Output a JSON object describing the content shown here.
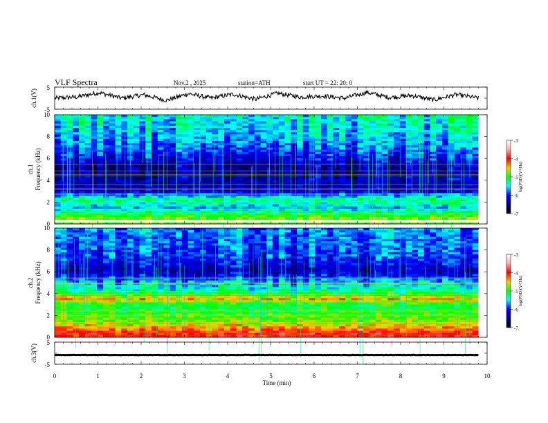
{
  "header": {
    "title": "VLF  Spectra",
    "date": "Nov.2  , 2025",
    "station": "station=ATH",
    "start": "start  UT  =   22: 20: 0"
  },
  "colorbar": {
    "label": "log(PSD)(V²/Hz)",
    "ticks": [
      "-3",
      "-4",
      "-5",
      "-6",
      "-7"
    ],
    "stops": [
      "#ffffff",
      "#ff0000",
      "#ffcc00",
      "#00ff00",
      "#00ffff",
      "#0000ff",
      "#000000"
    ]
  },
  "chart_data": [
    {
      "type": "line",
      "name": "ch1-waveform",
      "ylabel": "ch.1(V)",
      "yticks": [
        "5",
        "-5"
      ],
      "ylim": [
        -5,
        5
      ],
      "xlim": [
        0,
        10
      ],
      "description_values_min": [
        0,
        9.8
      ],
      "approx_values": [
        0.0,
        0.5,
        2.5,
        0.0,
        1.5,
        -1.0,
        2.0,
        0.0,
        1.8,
        -0.5,
        2.2,
        0.5,
        1.0,
        0.0,
        2.6,
        0.3,
        1.2,
        -0.8,
        1.6,
        0.0
      ]
    },
    {
      "type": "heatmap",
      "name": "ch1-spectrogram",
      "ylabel": "ch.1",
      "ylabel2": "Frequency  (kHz)",
      "yticks": [
        "10",
        "8",
        "6",
        "4",
        "2",
        "0"
      ],
      "ylim": [
        0,
        10
      ],
      "xlim": [
        0,
        9.8
      ],
      "profile_khz": [
        0.5,
        1.5,
        2.2,
        3.0,
        4.0,
        5.0,
        6.0,
        7.0,
        8.0,
        9.0,
        10.0
      ],
      "profile_log_psd": [
        -4.8,
        -5.6,
        -5.2,
        -6.2,
        -6.3,
        -6.4,
        -6.1,
        -5.8,
        -5.6,
        -5.5,
        -5.4
      ]
    },
    {
      "type": "heatmap",
      "name": "ch2-spectrogram",
      "ylabel": "ch.2",
      "ylabel2": "Frequency  (kHz)",
      "yticks": [
        "10",
        "8",
        "6",
        "4",
        "2",
        "0"
      ],
      "ylim": [
        0,
        10
      ],
      "xlim": [
        0,
        9.8
      ],
      "profile_khz": [
        0.3,
        0.8,
        1.5,
        2.2,
        3.0,
        3.5,
        4.2,
        5.0,
        6.0,
        7.5,
        9.0,
        10.0
      ],
      "profile_log_psd": [
        -4.0,
        -4.3,
        -4.8,
        -5.0,
        -5.1,
        -4.4,
        -5.3,
        -5.6,
        -6.3,
        -5.9,
        -5.8,
        -5.7
      ]
    },
    {
      "type": "line",
      "name": "ch3-waveform",
      "ylabel": "ch.3(V)",
      "yticks": [
        "5",
        "-5"
      ],
      "ylim": [
        -5,
        5
      ],
      "xlim": [
        0,
        10
      ],
      "approx_values": [
        -0.8,
        -0.8
      ]
    }
  ],
  "xaxis": {
    "label": "Time  (min)",
    "ticks": [
      "0",
      "1",
      "2",
      "3",
      "4",
      "5",
      "6",
      "7",
      "8",
      "9",
      "10"
    ]
  }
}
